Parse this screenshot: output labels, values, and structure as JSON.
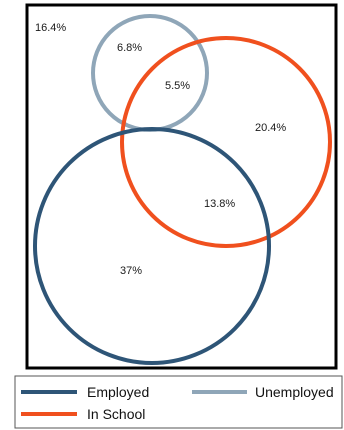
{
  "diagram": {
    "type": "venn",
    "sets": [
      {
        "key": "employed",
        "name": "Employed",
        "color": "#2e5577"
      },
      {
        "key": "unemployed",
        "name": "Unemployed",
        "color": "#8fa6b8"
      },
      {
        "key": "in_school",
        "name": "In School",
        "color": "#f0501e"
      }
    ],
    "regions": {
      "outside": "16.4%",
      "unemployed_only": "6.8%",
      "unemployed_and_school": "5.5%",
      "school_only": "20.4%",
      "employed_and_school": "13.8%",
      "employed_only": "37%"
    },
    "colors": {
      "frame": "#000000",
      "legend_border": "#555555",
      "background": "#ffffff"
    }
  }
}
